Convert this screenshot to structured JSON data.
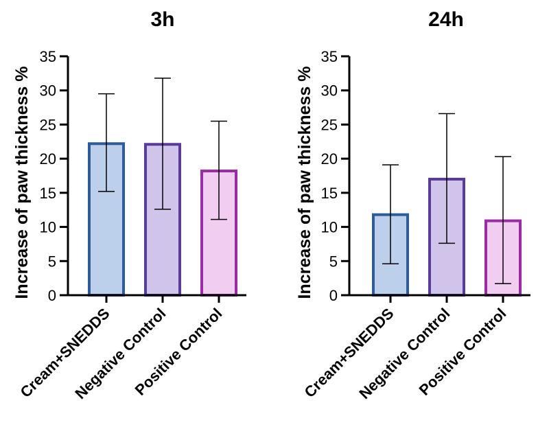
{
  "chart_data": [
    {
      "type": "bar",
      "title": "3h",
      "ylabel": "Increase of paw thickness %",
      "xlabel": "",
      "categories": [
        "Cream+SNEDDS",
        "Negative Control",
        "Positive Control"
      ],
      "values": [
        22.2,
        22.1,
        18.2
      ],
      "error_low": [
        15.2,
        12.6,
        11.1
      ],
      "error_high": [
        29.5,
        31.8,
        25.5
      ],
      "ylim": [
        0,
        35
      ],
      "yticks": [
        "0",
        "5",
        "10",
        "15",
        "20",
        "25",
        "30",
        "35"
      ],
      "grid": false,
      "legend": "none"
    },
    {
      "type": "bar",
      "title": "24h",
      "ylabel": "Increase of paw thickness %",
      "xlabel": "",
      "categories": [
        "Cream+SNEDDS",
        "Negative Control",
        "Positive Control"
      ],
      "values": [
        11.8,
        17.0,
        10.9
      ],
      "error_low": [
        4.6,
        7.6,
        1.7
      ],
      "error_high": [
        19.1,
        26.6,
        20.3
      ],
      "ylim": [
        0,
        35
      ],
      "yticks": [
        "0",
        "5",
        "10",
        "15",
        "20",
        "25",
        "30",
        "35"
      ],
      "grid": false,
      "legend": "none"
    }
  ],
  "colors": {
    "bar_fills": [
      "#bcd0eb",
      "#d1c4ea",
      "#f2cdf2"
    ],
    "bar_edges": [
      "#2e5b9a",
      "#5a3a9a",
      "#9b2aa6"
    ],
    "axis": "#000000"
  }
}
